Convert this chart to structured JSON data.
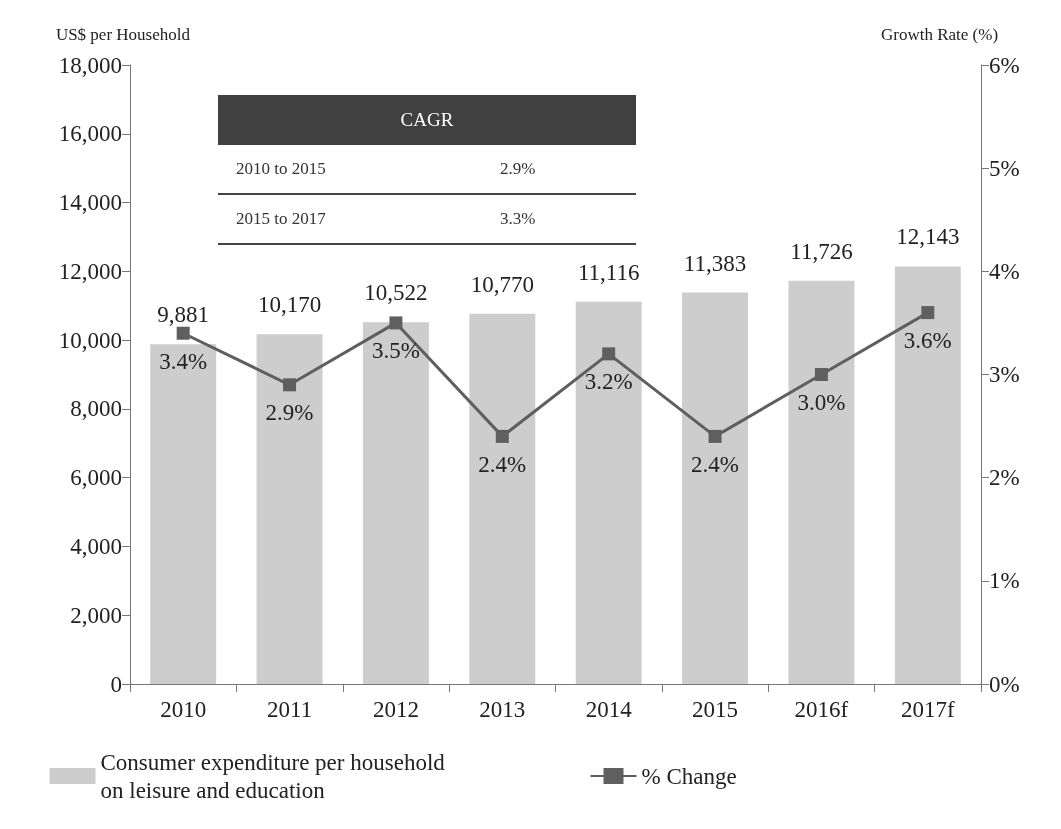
{
  "chart_data": {
    "type": "bar",
    "ylabel": "US$ per Household",
    "y2label": "Growth Rate (%)",
    "categories": [
      "2010",
      "2011",
      "2012",
      "2013",
      "2014",
      "2015",
      "2016f",
      "2017f"
    ],
    "series": [
      {
        "name": "Consumer expenditure per household on leisure and education",
        "color": "#cdcdcd",
        "values": [
          9881,
          10170,
          10522,
          10770,
          11116,
          11383,
          11726,
          12143
        ],
        "value_labels": [
          "9,881",
          "10,170",
          "10,522",
          "10,770",
          "11,116",
          "11,383",
          "11,726",
          "12,143"
        ]
      },
      {
        "name": "% Change",
        "type": "line",
        "axis": "y2",
        "color": "#5f5f5f",
        "marker": "square",
        "values": [
          3.4,
          2.9,
          3.5,
          2.4,
          3.2,
          2.4,
          3.0,
          3.6
        ],
        "value_labels": [
          "3.4%",
          "2.9%",
          "3.5%",
          "2.4%",
          "3.2%",
          "2.4%",
          "3.0%",
          "3.6%"
        ]
      }
    ],
    "ylim": [
      0,
      18000
    ],
    "yticks": [
      0,
      {
        "value": 2000,
        "label": "2,000"
      },
      {
        "value": 4000,
        "label": "4,000"
      },
      {
        "value": 6000,
        "label": "6,000"
      },
      {
        "value": 8000,
        "label": "8,000"
      },
      {
        "value": 10000,
        "label": "10,000"
      },
      {
        "value": 12000,
        "label": "12,000"
      },
      {
        "value": 14000,
        "label": "14,000"
      },
      {
        "value": 16000,
        "label": "16,000"
      },
      {
        "value": 18000,
        "label": "18,000"
      }
    ],
    "y2lim": [
      0,
      6
    ],
    "y2ticks": [
      {
        "value": 0,
        "label": "0%"
      },
      {
        "value": 1,
        "label": "1%"
      },
      {
        "value": 2,
        "label": "2%"
      },
      {
        "value": 3,
        "label": "3%"
      },
      {
        "value": 4,
        "label": "4%"
      },
      {
        "value": 5,
        "label": "5%"
      },
      {
        "value": 6,
        "label": "6%"
      }
    ],
    "grid": false,
    "legend": "bottom",
    "annotations": [
      "CAGR",
      "2010 to 2015",
      "2.9%",
      "2015 to 2017",
      "3.3%"
    ]
  }
}
